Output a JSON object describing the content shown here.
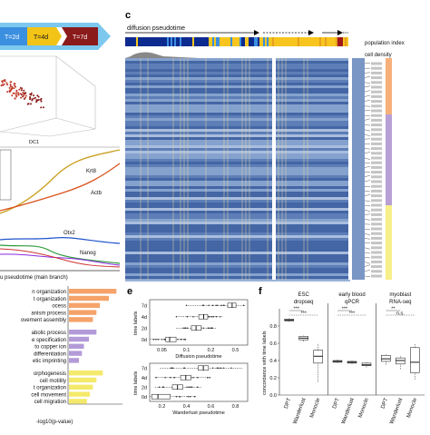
{
  "panel_labels": {
    "c": "c",
    "e": "e",
    "f": "f"
  },
  "time_arrow": {
    "stages": [
      {
        "label": "T=2d",
        "color": "#3b8fe0"
      },
      {
        "label": "T=4d",
        "color": "#f2c418"
      },
      {
        "label": "T=7d",
        "color": "#8b1a1a"
      }
    ]
  },
  "panel_a": {
    "axis_label": "DC1"
  },
  "panel_b": {
    "genes": [
      {
        "name": "Krt8",
        "color": "#c9a020"
      },
      {
        "name": "Actb",
        "color": "#d9531e"
      },
      {
        "name": "Otx2",
        "color": "#2255cc"
      },
      {
        "name": "Nanog",
        "color": "#2a9a3a"
      }
    ],
    "xlabel": "u pseudotime (main branch)"
  },
  "panel_c": {
    "title": "diffusion pseudotime",
    "population_label": "population index",
    "density_label": "cell density",
    "colors": {
      "blue": "#0d2a8f",
      "yellow": "#f7c51e",
      "red": "#a01a1a",
      "purple": "#b8a0d6",
      "orange": "#f7b07a",
      "lightyellow": "#f7ef8a"
    }
  },
  "panel_d": {
    "terms": [
      {
        "label": "n organization",
        "group": "orange",
        "value": 0.95
      },
      {
        "label": "t organization",
        "group": "orange",
        "value": 0.8
      },
      {
        "label": "ocess",
        "group": "orange",
        "value": 0.62
      },
      {
        "label": "anism process",
        "group": "orange",
        "value": 0.55
      },
      {
        "label": "ovement assembly",
        "group": "orange",
        "value": 0.48
      },
      {
        "label": "abolic process",
        "group": "purple",
        "value": 0.55
      },
      {
        "label": "e specification",
        "group": "purple",
        "value": 0.4
      },
      {
        "label": "to copper ion",
        "group": "purple",
        "value": 0.3
      },
      {
        "label": "differentiation",
        "group": "purple",
        "value": 0.26
      },
      {
        "label": "etic imprinting",
        "group": "purple",
        "value": 0.2
      },
      {
        "label": "orphogenesis",
        "group": "yellow",
        "value": 0.68
      },
      {
        "label": "cell motility",
        "group": "yellow",
        "value": 0.55
      },
      {
        "label": "t organization",
        "group": "yellow",
        "value": 0.48
      },
      {
        "label": "cell movement",
        "group": "yellow",
        "value": 0.42
      },
      {
        "label": "cell migration",
        "group": "yellow",
        "value": 0.36
      }
    ],
    "xlabel": "-log10(p-value)",
    "colors": {
      "orange": "#f5a36a",
      "purple": "#b39ad8",
      "yellow": "#f4e96a"
    }
  },
  "chart_data": [
    {
      "type": "box",
      "panel": "e-top",
      "ylabel": "time labels",
      "xlabel": "Diffusion pseudotime",
      "categories": [
        "0d",
        "2d",
        "4d",
        "7d"
      ],
      "xticks": [
        "0.05",
        "0.1",
        "0.2",
        "0.5"
      ],
      "boxes": [
        {
          "category": "0d",
          "q1": 0.035,
          "median": 0.04,
          "q3": 0.05,
          "whisker_low": 0.02,
          "whisker_high": 0.07
        },
        {
          "category": "2d",
          "q1": 0.085,
          "median": 0.1,
          "q3": 0.12,
          "whisker_low": 0.05,
          "whisker_high": 0.2
        },
        {
          "category": "4d",
          "q1": 0.11,
          "median": 0.13,
          "q3": 0.15,
          "whisker_low": 0.05,
          "whisker_high": 0.25
        },
        {
          "category": "7d",
          "q1": 0.3,
          "median": 0.35,
          "q3": 0.4,
          "whisker_low": 0.07,
          "whisker_high": 0.55
        }
      ]
    },
    {
      "type": "box",
      "panel": "e-bottom",
      "ylabel": "time labels",
      "xlabel": "Wanderlust pseudotime",
      "categories": [
        "0d",
        "2d",
        "4d",
        "7d"
      ],
      "xticks": [
        "0.2",
        "0.4",
        "0.6",
        "0.8"
      ],
      "boxes": [
        {
          "category": "0d",
          "q1": 0.02,
          "median": 0.08,
          "q3": 0.2,
          "whisker_low": 0.0,
          "whisker_high": 0.45
        },
        {
          "category": "2d",
          "q1": 0.22,
          "median": 0.27,
          "q3": 0.32,
          "whisker_low": 0.05,
          "whisker_high": 0.5
        },
        {
          "category": "4d",
          "q1": 0.3,
          "median": 0.35,
          "q3": 0.4,
          "whisker_low": 0.05,
          "whisker_high": 0.6
        },
        {
          "category": "7d",
          "q1": 0.47,
          "median": 0.52,
          "q3": 0.57,
          "whisker_low": 0.1,
          "whisker_high": 0.9
        }
      ]
    },
    {
      "type": "box",
      "panel": "f",
      "ylabel": "concordance with time labels",
      "ylim": [
        0,
        1
      ],
      "yticks": [
        "0.0",
        "0.2",
        "0.4",
        "0.6",
        "0.8"
      ],
      "groups": [
        {
          "title": [
            "ESC",
            "dropseq"
          ],
          "methods": [
            "DPT",
            "Wanderlust",
            "Monocle"
          ],
          "signif": [
            "***",
            "***"
          ],
          "boxes": [
            {
              "q1": 0.86,
              "median": 0.87,
              "q3": 0.88,
              "whisker_low": 0.85,
              "whisker_high": 0.89
            },
            {
              "q1": 0.64,
              "median": 0.66,
              "q3": 0.68,
              "whisker_low": 0.62,
              "whisker_high": 0.7
            },
            {
              "q1": 0.37,
              "median": 0.45,
              "q3": 0.52,
              "whisker_low": 0.15,
              "whisker_high": 0.6
            }
          ]
        },
        {
          "title": [
            "early blood",
            "qPCR"
          ],
          "methods": [
            "DPT",
            "Wanderlust",
            "Monocle"
          ],
          "signif": [
            "***",
            "***"
          ],
          "boxes": [
            {
              "q1": 0.38,
              "median": 0.39,
              "q3": 0.4,
              "whisker_low": 0.37,
              "whisker_high": 0.41
            },
            {
              "q1": 0.37,
              "median": 0.38,
              "q3": 0.39,
              "whisker_low": 0.36,
              "whisker_high": 0.4
            },
            {
              "q1": 0.34,
              "median": 0.35,
              "q3": 0.37,
              "whisker_low": 0.32,
              "whisker_high": 0.38
            }
          ]
        },
        {
          "title": [
            "myoblast",
            "RNA-seq"
          ],
          "methods": [
            "DPT",
            "Wanderlust",
            "Monocle"
          ],
          "signif": [
            "**",
            "n.s."
          ],
          "boxes": [
            {
              "q1": 0.39,
              "median": 0.42,
              "q3": 0.46,
              "whisker_low": 0.35,
              "whisker_high": 0.48
            },
            {
              "q1": 0.36,
              "median": 0.4,
              "q3": 0.43,
              "whisker_low": 0.3,
              "whisker_high": 0.46
            },
            {
              "q1": 0.26,
              "median": 0.38,
              "q3": 0.55,
              "whisker_low": 0.18,
              "whisker_high": 0.6
            }
          ]
        }
      ]
    }
  ]
}
